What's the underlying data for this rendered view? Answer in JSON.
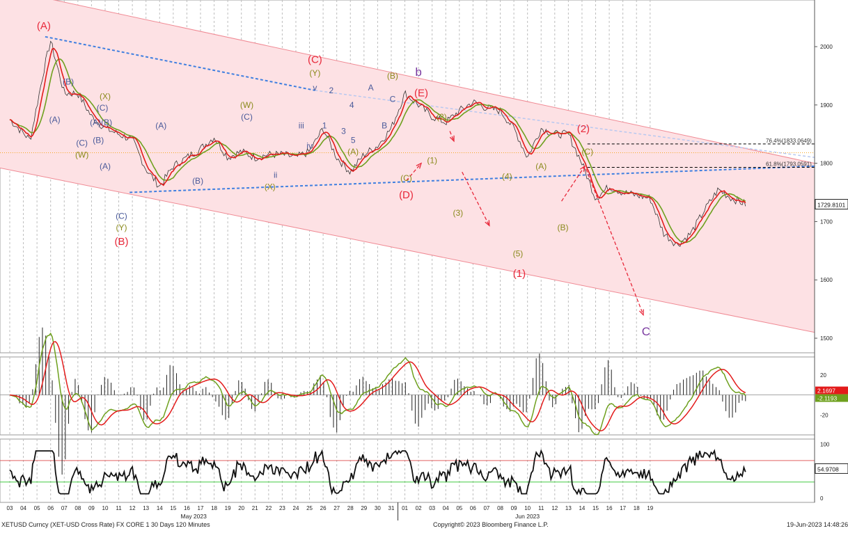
{
  "footer": {
    "left": "XETUSD Curncy (XET-USD Cross Rate) FX CORE 1 30 Days 120 Minutes",
    "center": "Copyright© 2023 Bloomberg Finance L.P.",
    "right": "19-Jun-2023 14:48:26"
  },
  "colors": {
    "channel_fill": "#fde1e4",
    "channel_line": "#f08a94",
    "price_fast": "#e31b1b",
    "price_slow": "#6ea01e",
    "dark_price": "#333333",
    "trend_blue": "#3f7fe0",
    "fib_line": "#000000",
    "red_label": "#e8283a",
    "olive_label": "#8a8a1c",
    "blue_label": "#4a5a9a",
    "purple_label": "#7a3aa0",
    "orange_line": "#f5a623",
    "oscillator": "#111111",
    "overbought": "#e06060",
    "oversold": "#44cc44"
  },
  "chart_data": [
    {
      "type": "line",
      "panel": "price",
      "y_ticks": [
        1500,
        1600,
        1700,
        1800,
        1900,
        2000
      ],
      "ylim": [
        1475,
        2080
      ],
      "last_price": "1729.8101",
      "x_days": [
        "03",
        "04",
        "05",
        "06",
        "07",
        "08",
        "09",
        "10",
        "11",
        "12",
        "13",
        "14",
        "15",
        "16",
        "17",
        "18",
        "19",
        "20",
        "21",
        "22",
        "23",
        "24",
        "25",
        "26",
        "27",
        "28",
        "29",
        "30",
        "31",
        "01",
        "02",
        "03",
        "04",
        "05",
        "06",
        "07",
        "08",
        "09",
        "10",
        "11",
        "12",
        "13",
        "14",
        "15",
        "16",
        "17",
        "18",
        "19"
      ],
      "month_labels": [
        "May 2023",
        "Jun 2023"
      ],
      "price_path": [
        [
          0,
          1875
        ],
        [
          1.5,
          1840
        ],
        [
          2.5,
          1960
        ],
        [
          3,
          2010
        ],
        [
          4,
          1920
        ],
        [
          5,
          1920
        ],
        [
          6,
          1880
        ],
        [
          7,
          1860
        ],
        [
          8,
          1850
        ],
        [
          9,
          1840
        ],
        [
          10,
          1790
        ],
        [
          11,
          1760
        ],
        [
          12,
          1795
        ],
        [
          13,
          1810
        ],
        [
          14,
          1825
        ],
        [
          15,
          1845
        ],
        [
          16,
          1810
        ],
        [
          17,
          1820
        ],
        [
          18,
          1810
        ],
        [
          19,
          1815
        ],
        [
          20,
          1815
        ],
        [
          21,
          1810
        ],
        [
          22,
          1820
        ],
        [
          23,
          1860
        ],
        [
          24,
          1810
        ],
        [
          25,
          1785
        ],
        [
          26,
          1815
        ],
        [
          27,
          1830
        ],
        [
          28,
          1860
        ],
        [
          29,
          1920
        ],
        [
          30,
          1900
        ],
        [
          31,
          1880
        ],
        [
          32,
          1870
        ],
        [
          33,
          1890
        ],
        [
          34,
          1905
        ],
        [
          35,
          1895
        ],
        [
          36,
          1890
        ],
        [
          37,
          1860
        ],
        [
          38,
          1810
        ],
        [
          39,
          1860
        ],
        [
          40,
          1850
        ],
        [
          41,
          1850
        ],
        [
          42,
          1800
        ],
        [
          43,
          1740
        ],
        [
          44,
          1760
        ],
        [
          45,
          1750
        ],
        [
          46,
          1745
        ],
        [
          47,
          1740
        ],
        [
          48,
          1680
        ],
        [
          49,
          1660
        ],
        [
          50,
          1680
        ],
        [
          51,
          1720
        ],
        [
          52,
          1755
        ],
        [
          53,
          1740
        ],
        [
          54,
          1730
        ]
      ],
      "fib_levels": [
        {
          "label": "76.4%(1833.0649)",
          "value": 1833.0649
        },
        {
          "label": "61.8%(1793.0591)",
          "value": 1793.0591
        }
      ],
      "wave_labels": [
        {
          "text": "(A)",
          "color": "red",
          "d": 2.5,
          "v": 2030
        },
        {
          "text": "(B)",
          "color": "blue",
          "d": 4.3,
          "v": 1935
        },
        {
          "text": "(A)",
          "color": "blue",
          "d": 3.3,
          "v": 1870
        },
        {
          "text": "(C)",
          "color": "blue",
          "d": 5.3,
          "v": 1830
        },
        {
          "text": "(W)",
          "color": "olive",
          "d": 5.3,
          "v": 1810
        },
        {
          "text": "(X)",
          "color": "olive",
          "d": 7.0,
          "v": 1910
        },
        {
          "text": "(C)",
          "color": "blue",
          "d": 6.8,
          "v": 1890
        },
        {
          "text": "(A)(B)",
          "color": "blue",
          "d": 6.7,
          "v": 1865
        },
        {
          "text": "(B)",
          "color": "blue",
          "d": 6.5,
          "v": 1835
        },
        {
          "text": "(A)",
          "color": "blue",
          "d": 7.0,
          "v": 1790
        },
        {
          "text": "(C)",
          "color": "blue",
          "d": 8.2,
          "v": 1705
        },
        {
          "text": "(Y)",
          "color": "olive",
          "d": 8.2,
          "v": 1685
        },
        {
          "text": "(B)",
          "color": "red",
          "d": 8.2,
          "v": 1660
        },
        {
          "text": "(A)",
          "color": "blue",
          "d": 11.1,
          "v": 1860
        },
        {
          "text": "(B)",
          "color": "blue",
          "d": 13.8,
          "v": 1765
        },
        {
          "text": "(W)",
          "color": "olive",
          "d": 17.4,
          "v": 1895
        },
        {
          "text": "(C)",
          "color": "blue",
          "d": 17.4,
          "v": 1875
        },
        {
          "text": "(X)",
          "color": "olive",
          "d": 19.1,
          "v": 1755
        },
        {
          "text": "ii",
          "color": "blue",
          "d": 19.5,
          "v": 1775
        },
        {
          "text": "iii",
          "color": "blue",
          "d": 21.4,
          "v": 1860
        },
        {
          "text": "iv",
          "color": "blue",
          "d": 22.0,
          "v": 1825
        },
        {
          "text": "v",
          "color": "blue",
          "d": 22.4,
          "v": 1925
        },
        {
          "text": "(C)",
          "color": "red",
          "d": 22.4,
          "v": 1972
        },
        {
          "text": "(Y)",
          "color": "olive",
          "d": 22.4,
          "v": 1950
        },
        {
          "text": "1",
          "color": "blue",
          "d": 23.1,
          "v": 1860
        },
        {
          "text": "2",
          "color": "blue",
          "d": 23.6,
          "v": 1920
        },
        {
          "text": "3",
          "color": "blue",
          "d": 24.5,
          "v": 1850
        },
        {
          "text": "4",
          "color": "blue",
          "d": 25.1,
          "v": 1895
        },
        {
          "text": "5",
          "color": "blue",
          "d": 25.2,
          "v": 1835
        },
        {
          "text": "(A)",
          "color": "olive",
          "d": 25.2,
          "v": 1815
        },
        {
          "text": "A",
          "color": "blue",
          "d": 26.5,
          "v": 1925
        },
        {
          "text": "B",
          "color": "blue",
          "d": 27.5,
          "v": 1860
        },
        {
          "text": "C",
          "color": "blue",
          "d": 28.1,
          "v": 1905
        },
        {
          "text": "(B)",
          "color": "olive",
          "d": 28.1,
          "v": 1945
        },
        {
          "text": "b",
          "color": "purple",
          "d": 30.0,
          "v": 1950
        },
        {
          "text": "(E)",
          "color": "red",
          "d": 30.2,
          "v": 1915
        },
        {
          "text": "(C)",
          "color": "olive",
          "d": 29.1,
          "v": 1770
        },
        {
          "text": "(D)",
          "color": "red",
          "d": 29.1,
          "v": 1740
        },
        {
          "text": "(1)",
          "color": "olive",
          "d": 31.0,
          "v": 1800
        },
        {
          "text": "(2)",
          "color": "olive",
          "d": 31.7,
          "v": 1875
        },
        {
          "text": "(3)",
          "color": "olive",
          "d": 32.9,
          "v": 1710
        },
        {
          "text": "(4)",
          "color": "olive",
          "d": 36.5,
          "v": 1773
        },
        {
          "text": "(5)",
          "color": "olive",
          "d": 37.3,
          "v": 1640
        },
        {
          "text": "(1)",
          "color": "red",
          "d": 37.4,
          "v": 1605
        },
        {
          "text": "(A)",
          "color": "olive",
          "d": 39.0,
          "v": 1790
        },
        {
          "text": "(B)",
          "color": "olive",
          "d": 40.6,
          "v": 1685
        },
        {
          "text": "(2)",
          "color": "red",
          "d": 42.1,
          "v": 1853
        },
        {
          "text": "(C)",
          "color": "olive",
          "d": 42.4,
          "v": 1815
        },
        {
          "text": "C",
          "color": "purple",
          "d": 46.7,
          "v": 1505
        }
      ]
    },
    {
      "type": "line",
      "panel": "macd",
      "y_ticks": [
        20,
        -20
      ],
      "ylim": [
        -40,
        38
      ],
      "value_labels": [
        "2.1697",
        "-2.1193"
      ]
    },
    {
      "type": "line",
      "panel": "rsi",
      "y_ticks": [
        0,
        100
      ],
      "ylim": [
        -8,
        110
      ],
      "overbought": 70,
      "oversold": 30,
      "last_value": "54.9708"
    }
  ]
}
